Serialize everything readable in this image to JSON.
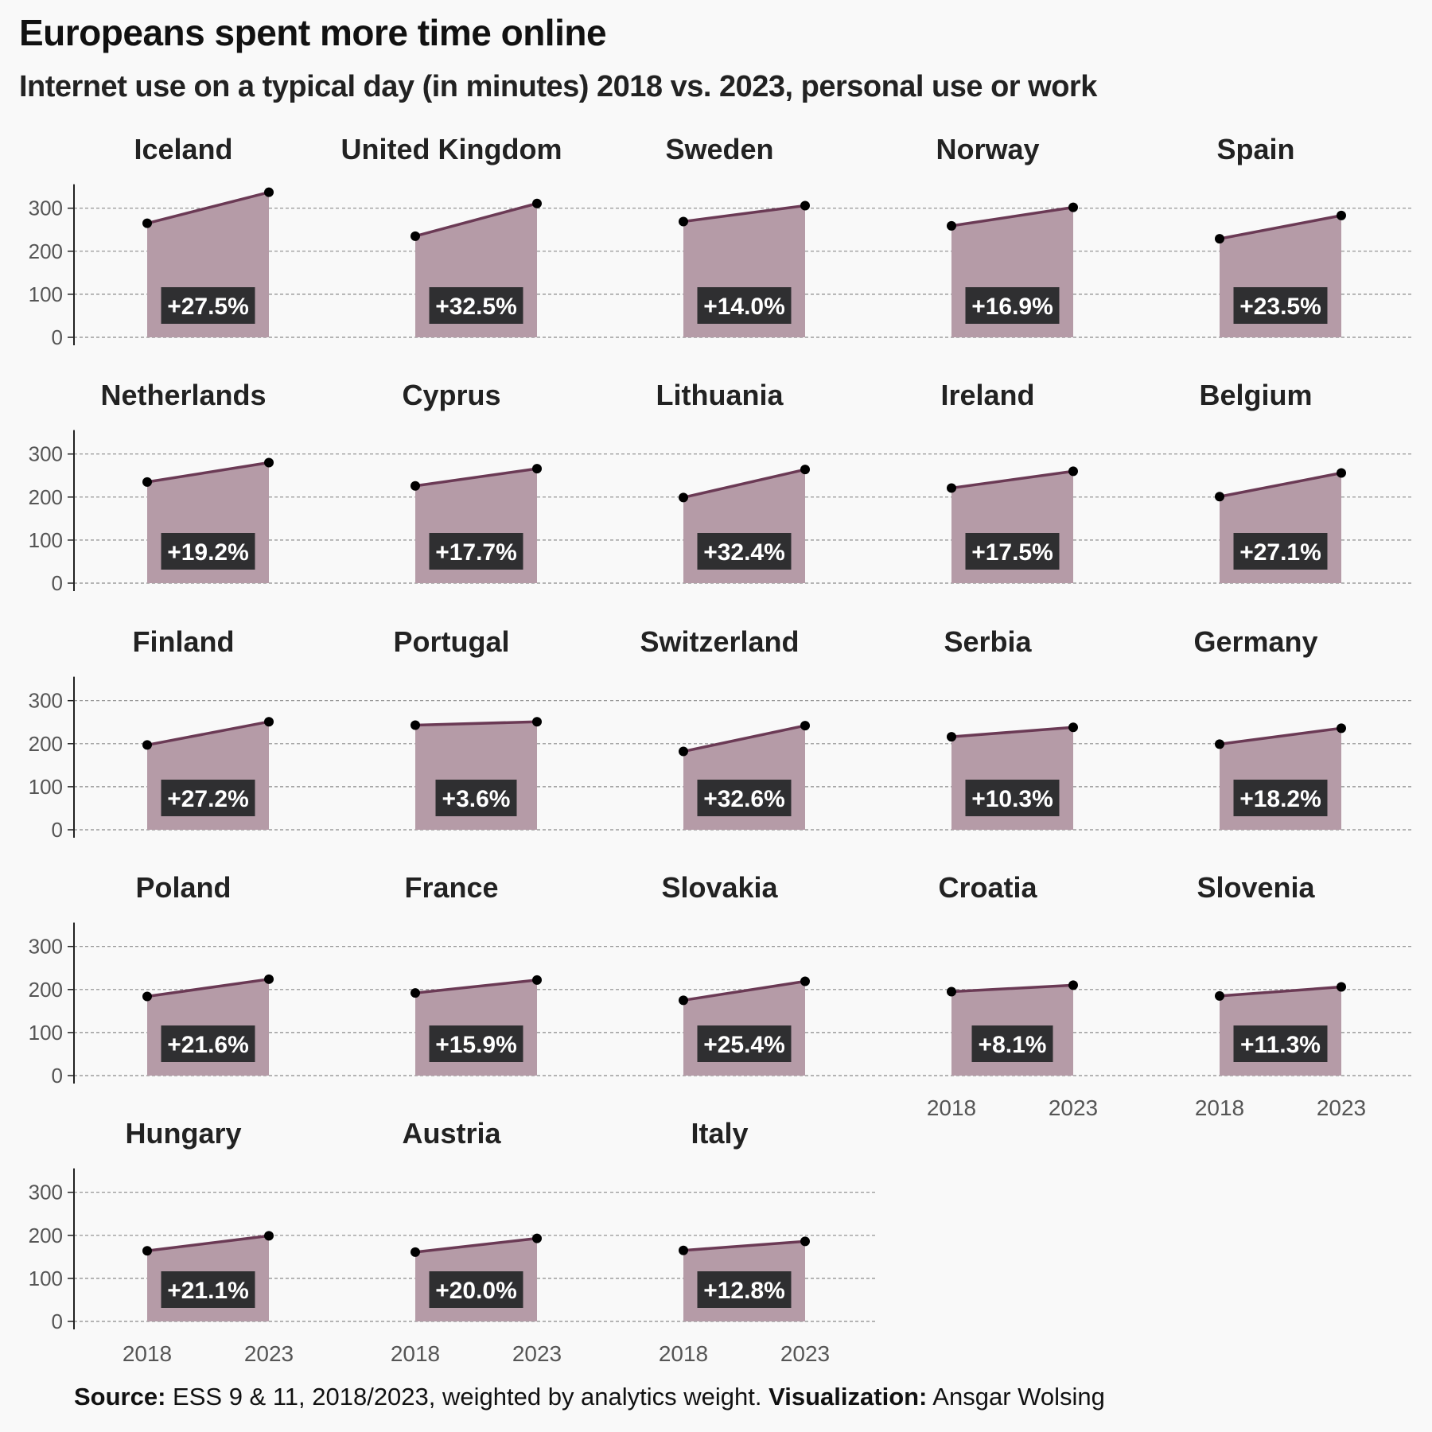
{
  "title": "Europeans spent more time online",
  "subtitle": "Internet use on a typical day (in minutes) 2018 vs. 2023, personal use or work",
  "caption": {
    "source_label": "Source:",
    "source_text": "ESS 9 & 11, 2018/2023, weighted by analytics weight.",
    "viz_label": "Visualization:",
    "viz_text": "Ansgar Wolsing"
  },
  "colors": {
    "area": "#b59ba7",
    "line": "#6b3a55",
    "point": "#000000",
    "label_bg": "#2f2f31",
    "label_text": "#ffffff",
    "grid": "#8a8a8a",
    "background": "#f9f9f9"
  },
  "chart_data": {
    "type": "area",
    "facets": "small multiples, 5 columns",
    "x": [
      "2018",
      "2023"
    ],
    "ylim": [
      0,
      350
    ],
    "yticks": [
      0,
      100,
      200,
      300
    ],
    "grid": "horizontal dashed",
    "panels": [
      {
        "country": "Iceland",
        "values": [
          265,
          337
        ],
        "change": "+27.5%"
      },
      {
        "country": "United Kingdom",
        "values": [
          235,
          311
        ],
        "change": "+32.5%"
      },
      {
        "country": "Sweden",
        "values": [
          269,
          306
        ],
        "change": "+14.0%"
      },
      {
        "country": "Norway",
        "values": [
          259,
          302
        ],
        "change": "+16.9%"
      },
      {
        "country": "Spain",
        "values": [
          229,
          283
        ],
        "change": "+23.5%"
      },
      {
        "country": "Netherlands",
        "values": [
          235,
          280
        ],
        "change": "+19.2%"
      },
      {
        "country": "Cyprus",
        "values": [
          226,
          266
        ],
        "change": "+17.7%"
      },
      {
        "country": "Lithuania",
        "values": [
          199,
          264
        ],
        "change": "+32.4%"
      },
      {
        "country": "Ireland",
        "values": [
          221,
          260
        ],
        "change": "+17.5%"
      },
      {
        "country": "Belgium",
        "values": [
          201,
          256
        ],
        "change": "+27.1%"
      },
      {
        "country": "Finland",
        "values": [
          197,
          251
        ],
        "change": "+27.2%"
      },
      {
        "country": "Portugal",
        "values": [
          243,
          251
        ],
        "change": "+3.6%"
      },
      {
        "country": "Switzerland",
        "values": [
          182,
          242
        ],
        "change": "+32.6%"
      },
      {
        "country": "Serbia",
        "values": [
          216,
          238
        ],
        "change": "+10.3%"
      },
      {
        "country": "Germany",
        "values": [
          199,
          236
        ],
        "change": "+18.2%"
      },
      {
        "country": "Poland",
        "values": [
          184,
          224
        ],
        "change": "+21.6%"
      },
      {
        "country": "France",
        "values": [
          192,
          222
        ],
        "change": "+15.9%"
      },
      {
        "country": "Slovakia",
        "values": [
          175,
          219
        ],
        "change": "+25.4%"
      },
      {
        "country": "Croatia",
        "values": [
          195,
          210
        ],
        "change": "+8.1%"
      },
      {
        "country": "Slovenia",
        "values": [
          185,
          206
        ],
        "change": "+11.3%"
      },
      {
        "country": "Hungary",
        "values": [
          164,
          199
        ],
        "change": "+21.1%"
      },
      {
        "country": "Austria",
        "values": [
          161,
          193
        ],
        "change": "+20.0%"
      },
      {
        "country": "Italy",
        "values": [
          165,
          186
        ],
        "change": "+12.8%"
      }
    ]
  }
}
